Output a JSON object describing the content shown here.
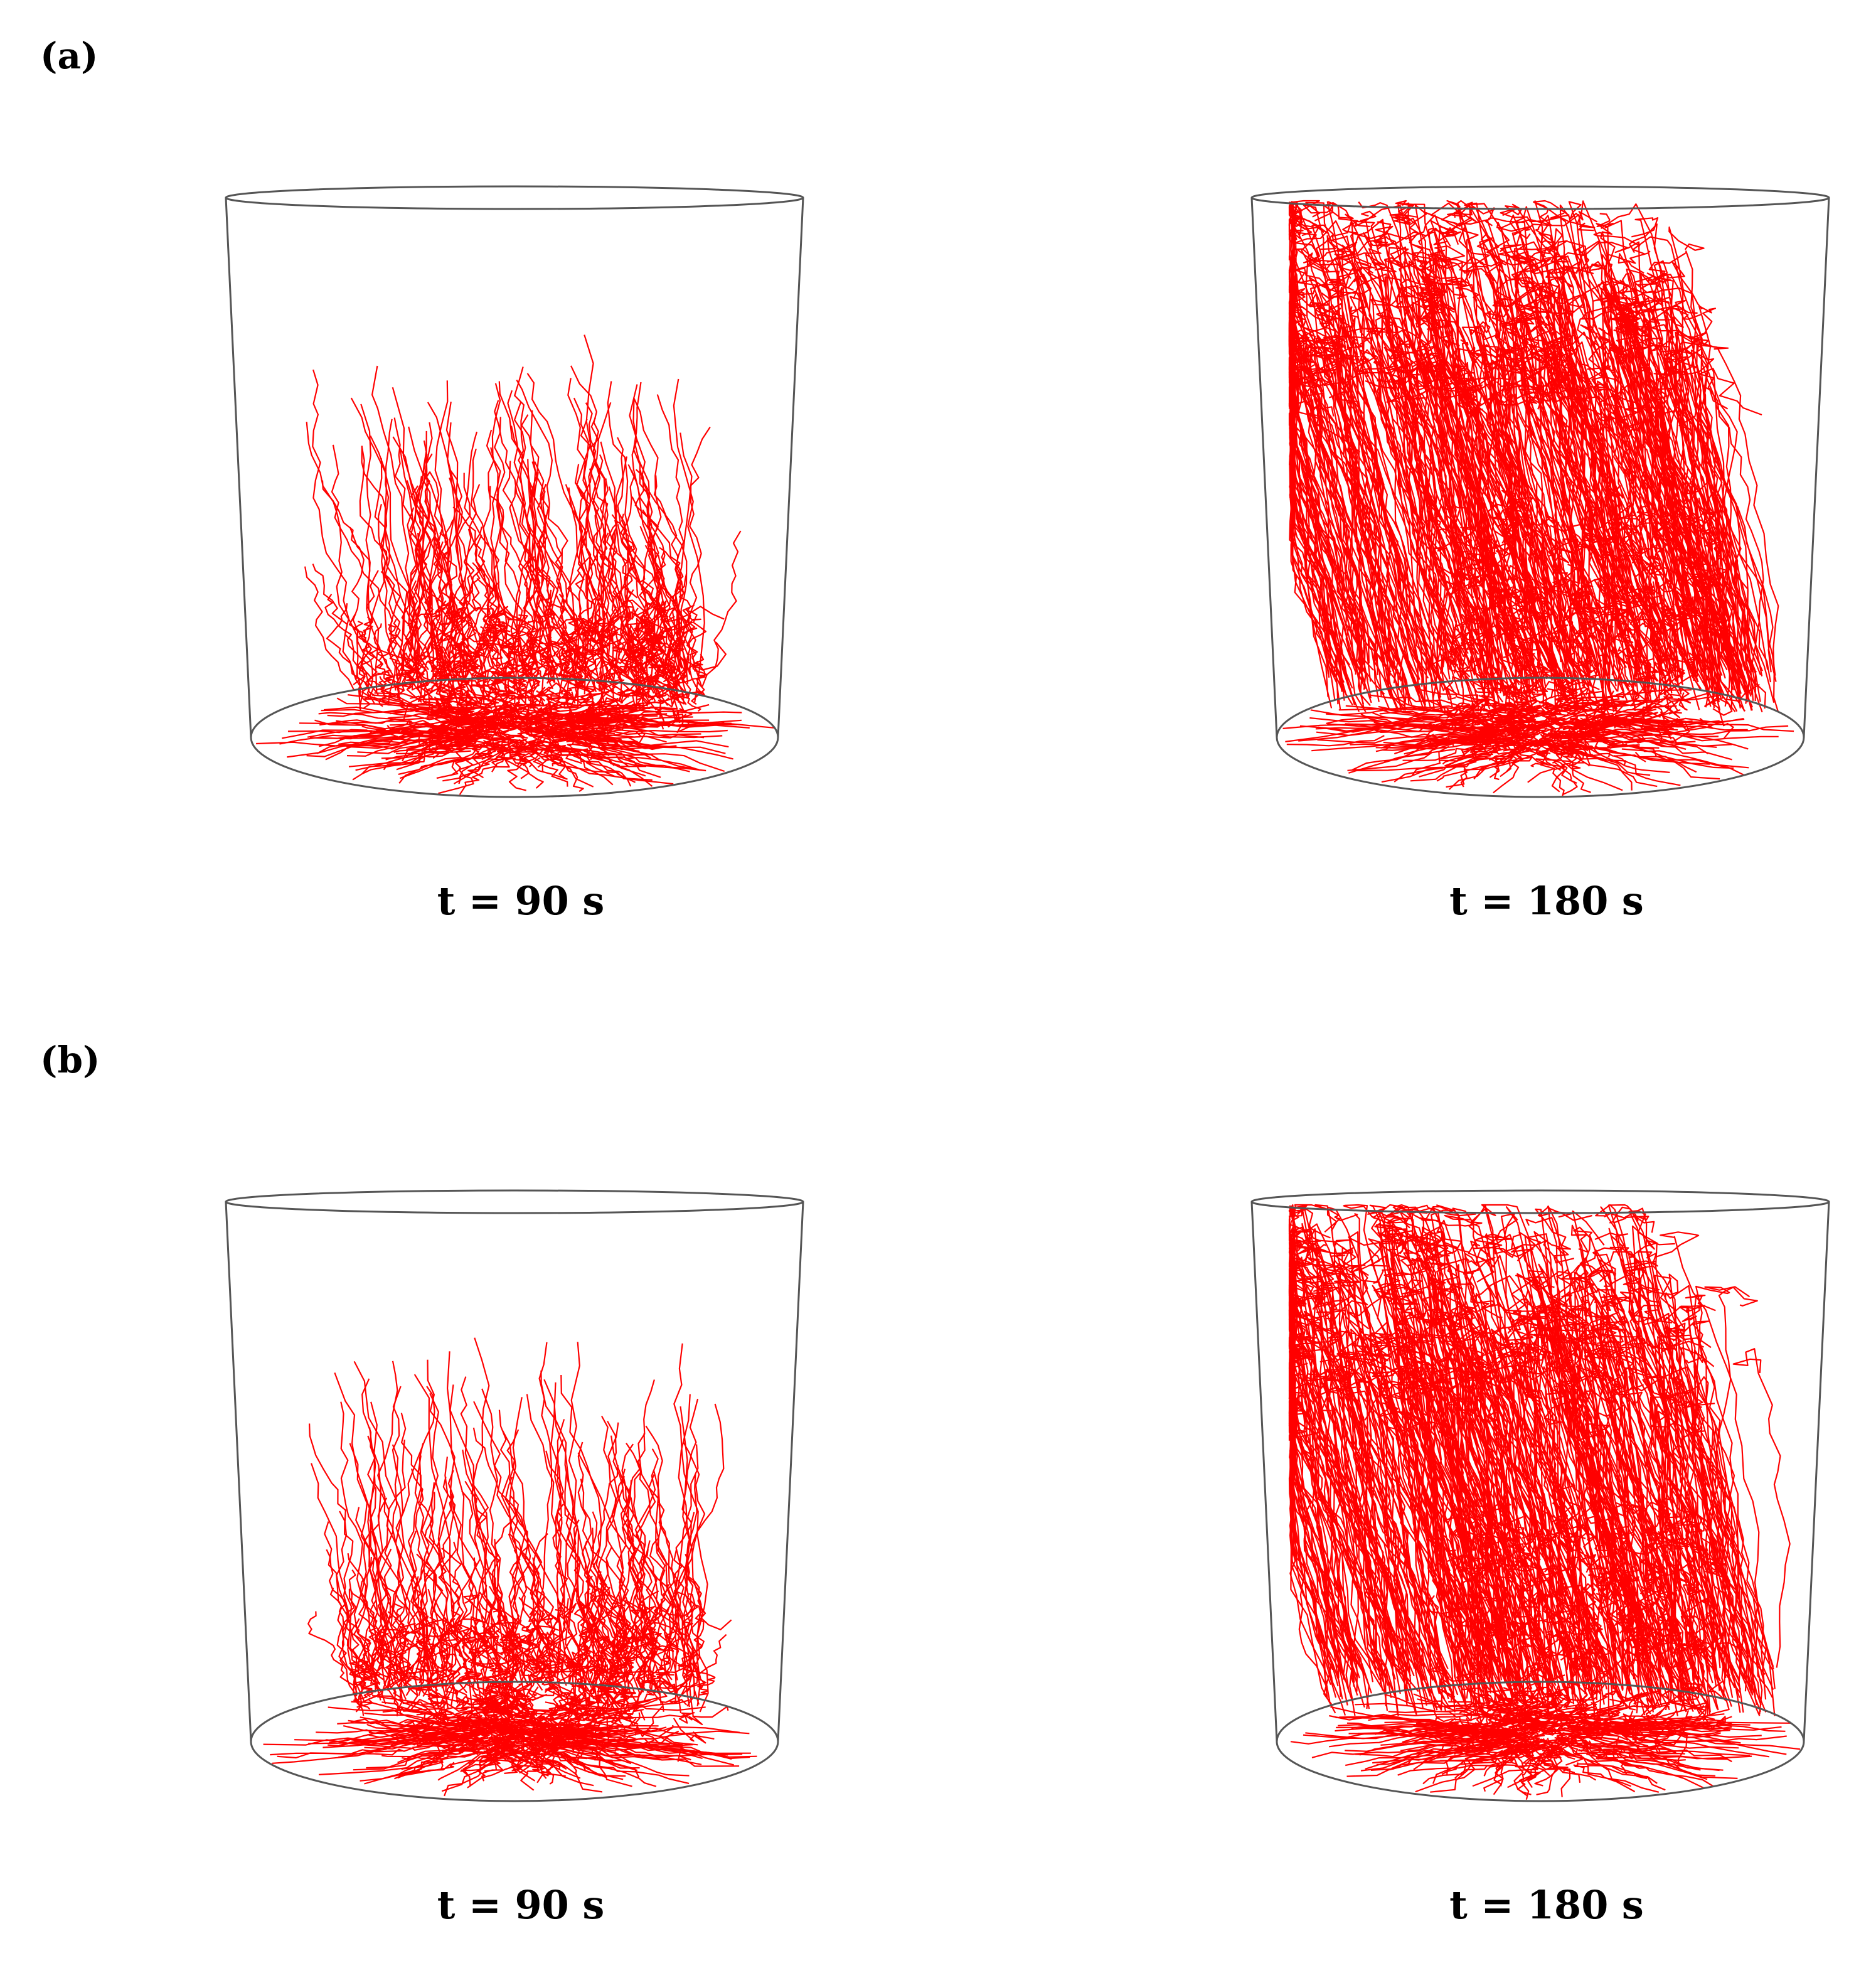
{
  "panels": [
    {
      "label": "(a)",
      "frames": [
        {
          "caption": "t = 90 s",
          "fill_level": 0.35
        },
        {
          "caption": "t = 180 s",
          "fill_level": 1.0
        }
      ]
    },
    {
      "label": "(b)",
      "frames": [
        {
          "caption": "t = 90 s",
          "fill_level": 0.38
        },
        {
          "caption": "t = 180 s",
          "fill_level": 1.0
        }
      ]
    }
  ],
  "colors": {
    "trajectory": "#ff0000",
    "outline": "#555555",
    "background": "#ffffff"
  }
}
